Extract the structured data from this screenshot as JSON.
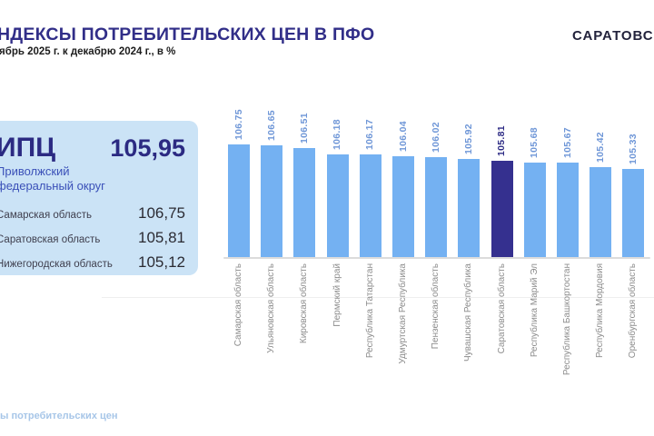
{
  "header": {
    "title": "НДЕКСЫ ПОТРЕБИТЕЛЬСКИХ ЦЕН В ПФО",
    "subtitle": "ябрь 2025 г. к декабрю 2024 г., в %",
    "brand": "САРАТОВС"
  },
  "summary_panel": {
    "label": "ИПЦ",
    "value": "105,95",
    "region_line1": "Приволжский",
    "region_line2": "федеральный округ",
    "rows": [
      {
        "label": "Самарская область",
        "value": "106,75"
      },
      {
        "label": "Саратовская область",
        "value": "105,81"
      },
      {
        "label": "Нижегородская область",
        "value": "105,12"
      }
    ]
  },
  "footer": {
    "text": "ы потребительских цен"
  },
  "chart_data": {
    "type": "bar",
    "title": "",
    "xlabel": "",
    "ylabel": "",
    "categories": [
      "Самарская область",
      "Ульяновская область",
      "Кировская область",
      "Пермский край",
      "Республика Татарстан",
      "Удмуртская Республика",
      "Пензенская область",
      "Чувашская Республика",
      "Саратовская область",
      "Республика Марий Эл",
      "Республика Башкортостан",
      "Республика Мордовия",
      "Оренбургская область"
    ],
    "values": [
      106.75,
      106.65,
      106.51,
      106.18,
      106.17,
      106.04,
      106.02,
      105.92,
      105.81,
      105.68,
      105.67,
      105.42,
      105.33
    ],
    "highlight_index": 8,
    "highlight_category": "Саратовская область",
    "ylim": [
      100.3,
      107.2
    ],
    "grid": false,
    "legend": "none",
    "value_labels_rotated": true,
    "category_labels_rotated": true,
    "colors": {
      "bar": "#74b1f2",
      "highlight_bar": "#35308f",
      "value_label": "#6e96d7",
      "highlight_value_label": "#2e2c85",
      "category_label": "#8c8c8c",
      "axis": "#dcdcdc"
    }
  },
  "colors": {
    "title": "#312e88",
    "panel_background": "#cbe3f6",
    "panel_accent": "#2b2a82",
    "region_text": "#3a50b8",
    "footer_text": "#a7c6e8",
    "brand_text": "#23233c"
  }
}
